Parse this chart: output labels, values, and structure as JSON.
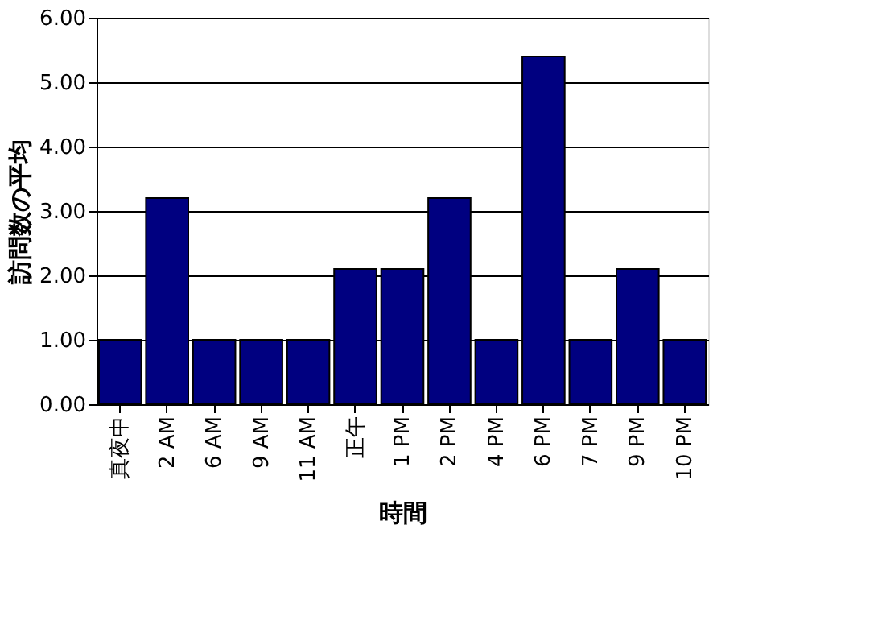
{
  "chart_data": {
    "type": "bar",
    "xlabel": "時間",
    "ylabel": "訪問数の平均",
    "categories": [
      "真夜中",
      "2 AM",
      "6 AM",
      "9 AM",
      "11 AM",
      "正午",
      "1 PM",
      "2 PM",
      "4 PM",
      "6 PM",
      "7 PM",
      "9 PM",
      "10 PM"
    ],
    "values": [
      1,
      3.2,
      1,
      1,
      1,
      2.1,
      2.1,
      3.2,
      1,
      5.4,
      1,
      2.1,
      1
    ],
    "color": "#000080",
    "ylim": [
      0,
      6
    ],
    "yticks": [
      {
        "value": 0,
        "label": "0.00"
      },
      {
        "value": 1,
        "label": "1.00"
      },
      {
        "value": 2,
        "label": "2.00"
      },
      {
        "value": 3,
        "label": "3.00"
      },
      {
        "value": 4,
        "label": "4.00"
      },
      {
        "value": 5,
        "label": "5.00"
      },
      {
        "value": 6,
        "label": "6.00"
      }
    ],
    "grid": "y"
  }
}
